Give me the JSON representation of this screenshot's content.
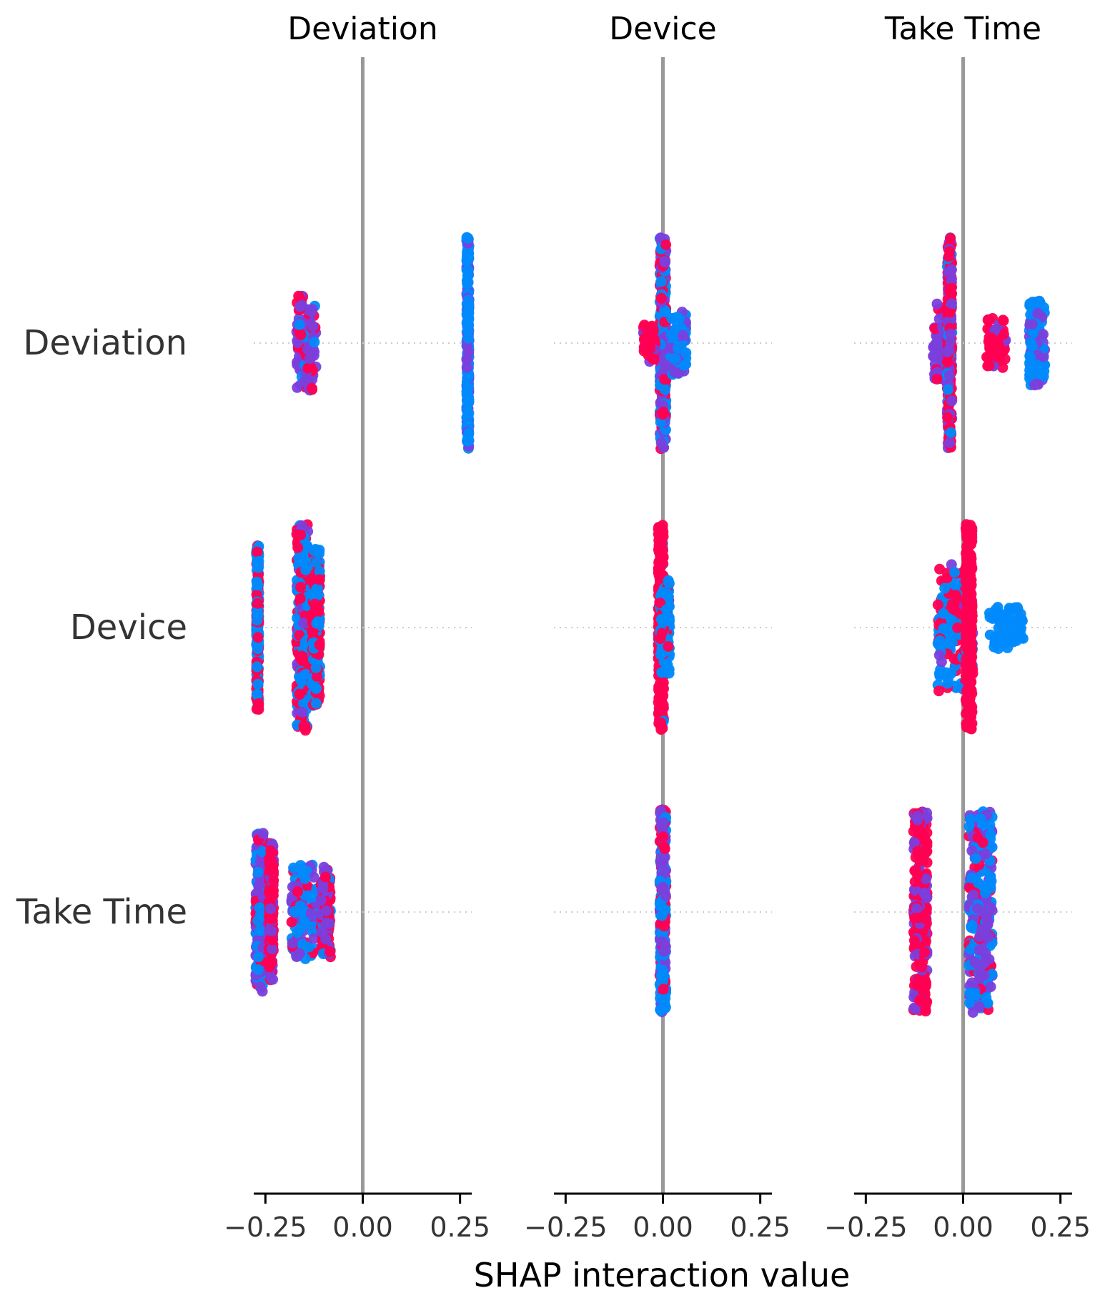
{
  "chart_data": {
    "type": "scatter",
    "subtype": "shap-interaction-beeswarm-grid",
    "xlabel": "SHAP interaction value",
    "features": [
      "Deviation",
      "Device",
      "Take Time"
    ],
    "column_titles": [
      "Deviation",
      "Device",
      "Take Time"
    ],
    "row_labels": [
      "Deviation",
      "Device",
      "Take Time"
    ],
    "xlim": [
      -0.28,
      0.28
    ],
    "xticks": [
      -0.25,
      0.0,
      0.25
    ],
    "xtick_labels": [
      "−0.25",
      "0.00",
      "0.25"
    ],
    "zero_line": true,
    "grid": false,
    "colormap": [
      "#008afb",
      "#7b3fdc",
      "#ff0052"
    ],
    "clusters": [
      {
        "row": "Deviation",
        "col": "Deviation",
        "groups": [
          {
            "x": -0.145,
            "width": 0.05,
            "height": 0.9,
            "mix": [
              0.1,
              0.6,
              0.3
            ]
          },
          {
            "x": 0.27,
            "width": 0.006,
            "height": 2.0,
            "mix": [
              0.75,
              0.25,
              0.0
            ]
          }
        ]
      },
      {
        "row": "Deviation",
        "col": "Device",
        "groups": [
          {
            "x": 0.0,
            "width": 0.016,
            "height": 2.0,
            "mix": [
              0.35,
              0.4,
              0.25
            ]
          },
          {
            "x": -0.035,
            "width": 0.03,
            "height": 0.35,
            "mix": [
              0.0,
              0.1,
              0.9
            ]
          },
          {
            "x": 0.04,
            "width": 0.04,
            "height": 0.6,
            "mix": [
              0.7,
              0.3,
              0.0
            ]
          }
        ]
      },
      {
        "row": "Deviation",
        "col": "Take Time",
        "groups": [
          {
            "x": -0.055,
            "width": 0.045,
            "height": 0.75,
            "mix": [
              0.0,
              0.75,
              0.25
            ]
          },
          {
            "x": -0.035,
            "width": 0.012,
            "height": 2.0,
            "mix": [
              0.1,
              0.35,
              0.55
            ]
          },
          {
            "x": 0.085,
            "width": 0.05,
            "height": 0.5,
            "mix": [
              0.0,
              0.1,
              0.9
            ]
          },
          {
            "x": 0.19,
            "width": 0.04,
            "height": 0.8,
            "mix": [
              0.7,
              0.3,
              0.0
            ]
          }
        ]
      },
      {
        "row": "Device",
        "col": "Deviation",
        "groups": [
          {
            "x": -0.27,
            "width": 0.006,
            "height": 1.55,
            "mix": [
              0.6,
              0.0,
              0.4
            ]
          },
          {
            "x": -0.155,
            "width": 0.03,
            "height": 1.95,
            "mix": [
              0.45,
              0.1,
              0.45
            ]
          },
          {
            "x": -0.12,
            "width": 0.02,
            "height": 1.5,
            "mix": [
              0.4,
              0.0,
              0.6
            ]
          }
        ]
      },
      {
        "row": "Device",
        "col": "Device",
        "groups": [
          {
            "x": -0.005,
            "width": 0.014,
            "height": 1.95,
            "mix": [
              0.05,
              0.0,
              0.95
            ]
          },
          {
            "x": 0.005,
            "width": 0.025,
            "height": 0.9,
            "mix": [
              0.7,
              0.0,
              0.3
            ]
          }
        ]
      },
      {
        "row": "Device",
        "col": "Take Time",
        "groups": [
          {
            "x": -0.02,
            "width": 0.09,
            "height": 1.2,
            "mix": [
              0.55,
              0.05,
              0.4
            ]
          },
          {
            "x": 0.015,
            "width": 0.016,
            "height": 1.95,
            "mix": [
              0.0,
              0.0,
              1.0
            ]
          },
          {
            "x": 0.11,
            "width": 0.09,
            "height": 0.4,
            "mix": [
              1.0,
              0.0,
              0.0
            ]
          }
        ]
      },
      {
        "row": "Take Time",
        "col": "Deviation",
        "groups": [
          {
            "x": -0.265,
            "width": 0.02,
            "height": 1.5,
            "mix": [
              0.4,
              0.5,
              0.1
            ]
          },
          {
            "x": -0.235,
            "width": 0.012,
            "height": 1.3,
            "mix": [
              0.0,
              0.3,
              0.7
            ]
          },
          {
            "x": -0.15,
            "width": 0.065,
            "height": 0.9,
            "mix": [
              0.65,
              0.25,
              0.1
            ]
          },
          {
            "x": -0.095,
            "width": 0.025,
            "height": 0.85,
            "mix": [
              0.1,
              0.3,
              0.6
            ]
          }
        ]
      },
      {
        "row": "Take Time",
        "col": "Device",
        "groups": [
          {
            "x": 0.0,
            "width": 0.016,
            "height": 1.95,
            "mix": [
              0.45,
              0.3,
              0.25
            ]
          }
        ]
      },
      {
        "row": "Take Time",
        "col": "Take Time",
        "groups": [
          {
            "x": -0.11,
            "width": 0.035,
            "height": 1.9,
            "mix": [
              0.0,
              0.25,
              0.75
            ]
          },
          {
            "x": 0.045,
            "width": 0.06,
            "height": 1.9,
            "mix": [
              0.45,
              0.4,
              0.15
            ]
          }
        ]
      }
    ]
  }
}
